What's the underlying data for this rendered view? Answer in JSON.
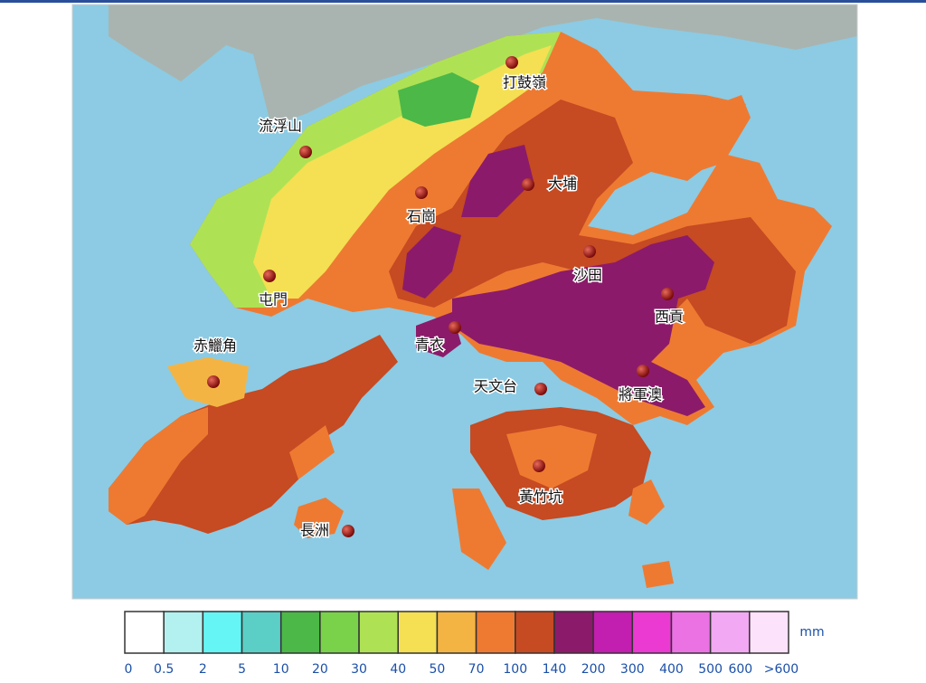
{
  "map": {
    "stations": [
      "打鼓嶺",
      "流浮山",
      "大埔",
      "石崗",
      "沙田",
      "屯門",
      "西貢",
      "赤鱲角",
      "青衣",
      "天文台",
      "將軍澳",
      "黃竹坑",
      "長洲"
    ]
  },
  "legend": {
    "unit": "mm",
    "colors": [
      "#ffffff",
      "#b3f0f0",
      "#66f5f5",
      "#5bcfc6",
      "#4cb848",
      "#7ad24a",
      "#aee254",
      "#f4e052",
      "#f4b444",
      "#ee7a32",
      "#c64a22",
      "#8c1a6a",
      "#c21eb0",
      "#ea3ad2",
      "#ea72e2",
      "#f2a8f2",
      "#fde2fc"
    ],
    "labels": [
      "0",
      "0.5",
      "2",
      "5",
      "10",
      "20",
      "30",
      "40",
      "50",
      "70",
      "100",
      "140",
      "200",
      "300",
      "400",
      "500",
      "600",
      ">600"
    ]
  }
}
